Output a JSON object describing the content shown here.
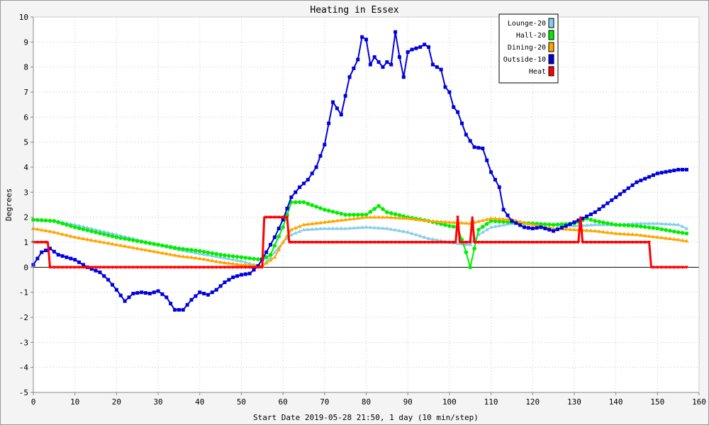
{
  "chart_data": {
    "type": "line",
    "title": "Heating in Essex",
    "xlabel": "Start Date 2019-05-28 21:50, 1 day (10 min/step)",
    "ylabel": "Degrees",
    "xlim": [
      0,
      160
    ],
    "ylim": [
      -5,
      10
    ],
    "xticks": [
      "0",
      "10",
      "20",
      "30",
      "40",
      "50",
      "60",
      "70",
      "80",
      "90",
      "100",
      "110",
      "120",
      "130",
      "140",
      "150",
      "160"
    ],
    "yticks": [
      "-5",
      "-4",
      "-3",
      "-2",
      "-1",
      "0",
      "1",
      "2",
      "3",
      "4",
      "5",
      "6",
      "7",
      "8",
      "9",
      "10"
    ],
    "grid": true,
    "legend_position": "top-right",
    "series": [
      {
        "name": "Lounge-20",
        "color": "#87ceeb",
        "points": [
          [
            0,
            1.9
          ],
          [
            5,
            1.85
          ],
          [
            10,
            1.7
          ],
          [
            15,
            1.5
          ],
          [
            20,
            1.3
          ],
          [
            25,
            1.1
          ],
          [
            30,
            0.9
          ],
          [
            35,
            0.7
          ],
          [
            40,
            0.55
          ],
          [
            45,
            0.4
          ],
          [
            50,
            0.25
          ],
          [
            53,
            0.1
          ],
          [
            55,
            0.05
          ],
          [
            57,
            0.4
          ],
          [
            60,
            1.0
          ],
          [
            62,
            1.3
          ],
          [
            65,
            1.5
          ],
          [
            70,
            1.55
          ],
          [
            75,
            1.55
          ],
          [
            80,
            1.6
          ],
          [
            85,
            1.55
          ],
          [
            90,
            1.4
          ],
          [
            95,
            1.15
          ],
          [
            100,
            1.0
          ],
          [
            102,
            0.95
          ],
          [
            105,
            0.9
          ],
          [
            107,
            1.3
          ],
          [
            110,
            1.6
          ],
          [
            115,
            1.75
          ],
          [
            120,
            1.75
          ],
          [
            125,
            1.7
          ],
          [
            130,
            1.65
          ],
          [
            135,
            1.7
          ],
          [
            140,
            1.7
          ],
          [
            145,
            1.75
          ],
          [
            150,
            1.75
          ],
          [
            155,
            1.7
          ],
          [
            157,
            1.55
          ]
        ]
      },
      {
        "name": "Hall-20",
        "color": "#00ee00",
        "points": [
          [
            0,
            1.9
          ],
          [
            5,
            1.85
          ],
          [
            10,
            1.6
          ],
          [
            15,
            1.4
          ],
          [
            20,
            1.2
          ],
          [
            25,
            1.05
          ],
          [
            30,
            0.9
          ],
          [
            35,
            0.75
          ],
          [
            40,
            0.65
          ],
          [
            45,
            0.5
          ],
          [
            50,
            0.4
          ],
          [
            55,
            0.3
          ],
          [
            57,
            0.5
          ],
          [
            60,
            1.6
          ],
          [
            62,
            2.6
          ],
          [
            65,
            2.6
          ],
          [
            70,
            2.3
          ],
          [
            75,
            2.1
          ],
          [
            80,
            2.1
          ],
          [
            83,
            2.45
          ],
          [
            85,
            2.2
          ],
          [
            90,
            2.0
          ],
          [
            95,
            1.85
          ],
          [
            100,
            1.65
          ],
          [
            102,
            1.6
          ],
          [
            104,
            0.6
          ],
          [
            105,
            0.0
          ],
          [
            107,
            1.5
          ],
          [
            110,
            1.85
          ],
          [
            115,
            1.8
          ],
          [
            120,
            1.75
          ],
          [
            125,
            1.7
          ],
          [
            130,
            1.75
          ],
          [
            133,
            1.95
          ],
          [
            135,
            1.85
          ],
          [
            140,
            1.7
          ],
          [
            145,
            1.65
          ],
          [
            150,
            1.55
          ],
          [
            155,
            1.4
          ],
          [
            157,
            1.35
          ]
        ]
      },
      {
        "name": "Dining-20",
        "color": "#ffa500",
        "points": [
          [
            0,
            1.55
          ],
          [
            5,
            1.4
          ],
          [
            10,
            1.2
          ],
          [
            15,
            1.05
          ],
          [
            20,
            0.9
          ],
          [
            25,
            0.75
          ],
          [
            30,
            0.6
          ],
          [
            35,
            0.45
          ],
          [
            40,
            0.35
          ],
          [
            45,
            0.2
          ],
          [
            50,
            0.1
          ],
          [
            55,
            0.05
          ],
          [
            58,
            0.4
          ],
          [
            60,
            1.0
          ],
          [
            62,
            1.5
          ],
          [
            65,
            1.7
          ],
          [
            70,
            1.8
          ],
          [
            75,
            1.9
          ],
          [
            80,
            2.0
          ],
          [
            85,
            2.0
          ],
          [
            90,
            1.95
          ],
          [
            95,
            1.85
          ],
          [
            100,
            1.8
          ],
          [
            105,
            1.75
          ],
          [
            110,
            1.95
          ],
          [
            115,
            1.9
          ],
          [
            120,
            1.7
          ],
          [
            125,
            1.55
          ],
          [
            130,
            1.5
          ],
          [
            135,
            1.45
          ],
          [
            140,
            1.35
          ],
          [
            145,
            1.3
          ],
          [
            150,
            1.2
          ],
          [
            155,
            1.1
          ],
          [
            157,
            1.05
          ]
        ]
      },
      {
        "name": "Outside-10",
        "color": "#0000dd",
        "points": [
          [
            0,
            0.1
          ],
          [
            2,
            0.6
          ],
          [
            4,
            0.75
          ],
          [
            6,
            0.5
          ],
          [
            10,
            0.3
          ],
          [
            13,
            0.0
          ],
          [
            16,
            -0.2
          ],
          [
            18,
            -0.5
          ],
          [
            20,
            -0.9
          ],
          [
            22,
            -1.35
          ],
          [
            24,
            -1.05
          ],
          [
            26,
            -1.0
          ],
          [
            28,
            -1.05
          ],
          [
            30,
            -0.95
          ],
          [
            32,
            -1.2
          ],
          [
            34,
            -1.7
          ],
          [
            36,
            -1.7
          ],
          [
            38,
            -1.3
          ],
          [
            40,
            -1.0
          ],
          [
            42,
            -1.1
          ],
          [
            44,
            -0.9
          ],
          [
            46,
            -0.6
          ],
          [
            48,
            -0.4
          ],
          [
            50,
            -0.3
          ],
          [
            52,
            -0.25
          ],
          [
            54,
            0.05
          ],
          [
            56,
            0.6
          ],
          [
            58,
            1.2
          ],
          [
            60,
            1.9
          ],
          [
            62,
            2.8
          ],
          [
            64,
            3.2
          ],
          [
            66,
            3.5
          ],
          [
            68,
            4.0
          ],
          [
            70,
            4.9
          ],
          [
            72,
            6.6
          ],
          [
            74,
            6.1
          ],
          [
            76,
            7.6
          ],
          [
            78,
            8.3
          ],
          [
            79,
            9.2
          ],
          [
            80,
            9.1
          ],
          [
            81,
            8.1
          ],
          [
            82,
            8.4
          ],
          [
            84,
            8.0
          ],
          [
            85,
            8.2
          ],
          [
            86,
            8.1
          ],
          [
            87,
            9.4
          ],
          [
            88,
            8.4
          ],
          [
            89,
            7.6
          ],
          [
            90,
            8.6
          ],
          [
            91,
            8.7
          ],
          [
            93,
            8.8
          ],
          [
            94,
            8.9
          ],
          [
            95,
            8.8
          ],
          [
            96,
            8.1
          ],
          [
            98,
            7.9
          ],
          [
            99,
            7.2
          ],
          [
            100,
            7.0
          ],
          [
            101,
            6.4
          ],
          [
            102,
            6.2
          ],
          [
            104,
            5.3
          ],
          [
            106,
            4.8
          ],
          [
            108,
            4.75
          ],
          [
            110,
            3.8
          ],
          [
            112,
            3.2
          ],
          [
            113,
            2.3
          ],
          [
            115,
            1.85
          ],
          [
            118,
            1.6
          ],
          [
            120,
            1.55
          ],
          [
            122,
            1.6
          ],
          [
            125,
            1.45
          ],
          [
            128,
            1.65
          ],
          [
            130,
            1.8
          ],
          [
            132,
            1.95
          ],
          [
            135,
            2.2
          ],
          [
            140,
            2.8
          ],
          [
            145,
            3.4
          ],
          [
            150,
            3.75
          ],
          [
            155,
            3.9
          ],
          [
            157,
            3.9
          ]
        ]
      },
      {
        "name": "Heat",
        "color": "#ff0000",
        "points": [
          [
            0,
            1
          ],
          [
            3.5,
            1
          ],
          [
            4,
            0
          ],
          [
            55,
            0
          ],
          [
            55.5,
            2
          ],
          [
            61,
            2
          ],
          [
            61.5,
            1
          ],
          [
            101.5,
            1
          ],
          [
            102,
            2
          ],
          [
            102.5,
            1
          ],
          [
            105,
            1
          ],
          [
            105.5,
            2
          ],
          [
            106,
            1
          ],
          [
            131,
            1
          ],
          [
            131.5,
            2
          ],
          [
            132,
            1
          ],
          [
            148,
            1
          ],
          [
            148.5,
            0
          ],
          [
            157,
            0
          ]
        ]
      }
    ]
  }
}
